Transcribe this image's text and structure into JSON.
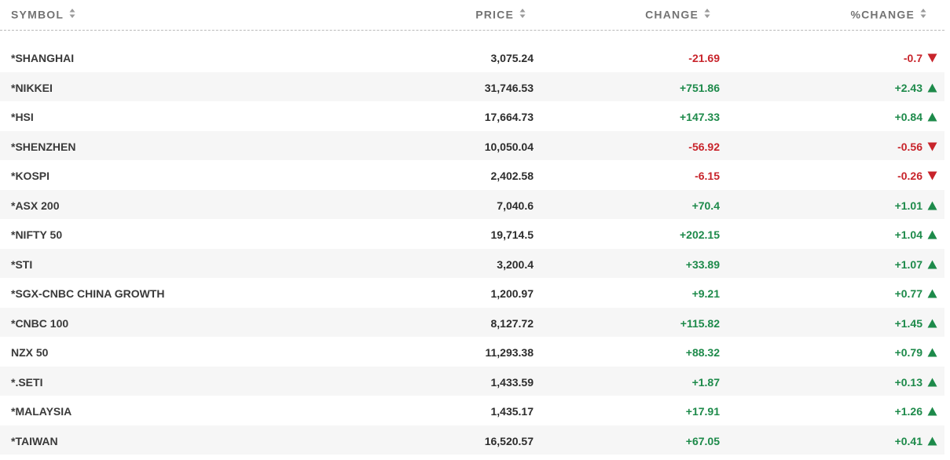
{
  "colors": {
    "positive": "#1d8a4a",
    "negative": "#c8242b",
    "header_text": "#737373",
    "row_alt_bg": "#f6f6f6"
  },
  "header": {
    "symbol": "SYMBOL",
    "price": "PRICE",
    "change": "CHANGE",
    "pct_change": "%CHANGE",
    "sort_icon": "sort-updown-icon"
  },
  "rows": [
    {
      "symbol": "*SHANGHAI",
      "price": "3,075.24",
      "change": "-21.69",
      "pct": "-0.7",
      "direction": "down"
    },
    {
      "symbol": "*NIKKEI",
      "price": "31,746.53",
      "change": "+751.86",
      "pct": "+2.43",
      "direction": "up"
    },
    {
      "symbol": "*HSI",
      "price": "17,664.73",
      "change": "+147.33",
      "pct": "+0.84",
      "direction": "up"
    },
    {
      "symbol": "*SHENZHEN",
      "price": "10,050.04",
      "change": "-56.92",
      "pct": "-0.56",
      "direction": "down"
    },
    {
      "symbol": "*KOSPI",
      "price": "2,402.58",
      "change": "-6.15",
      "pct": "-0.26",
      "direction": "down"
    },
    {
      "symbol": "*ASX 200",
      "price": "7,040.6",
      "change": "+70.4",
      "pct": "+1.01",
      "direction": "up"
    },
    {
      "symbol": "*NIFTY 50",
      "price": "19,714.5",
      "change": "+202.15",
      "pct": "+1.04",
      "direction": "up"
    },
    {
      "symbol": "*STI",
      "price": "3,200.4",
      "change": "+33.89",
      "pct": "+1.07",
      "direction": "up"
    },
    {
      "symbol": "*SGX-CNBC CHINA GROWTH",
      "price": "1,200.97",
      "change": "+9.21",
      "pct": "+0.77",
      "direction": "up"
    },
    {
      "symbol": "*CNBC 100",
      "price": "8,127.72",
      "change": "+115.82",
      "pct": "+1.45",
      "direction": "up"
    },
    {
      "symbol": "NZX 50",
      "price": "11,293.38",
      "change": "+88.32",
      "pct": "+0.79",
      "direction": "up"
    },
    {
      "symbol": "*.SETI",
      "price": "1,433.59",
      "change": "+1.87",
      "pct": "+0.13",
      "direction": "up"
    },
    {
      "symbol": "*MALAYSIA",
      "price": "1,435.17",
      "change": "+17.91",
      "pct": "+1.26",
      "direction": "up"
    },
    {
      "symbol": "*TAIWAN",
      "price": "16,520.57",
      "change": "+67.05",
      "pct": "+0.41",
      "direction": "up"
    }
  ]
}
